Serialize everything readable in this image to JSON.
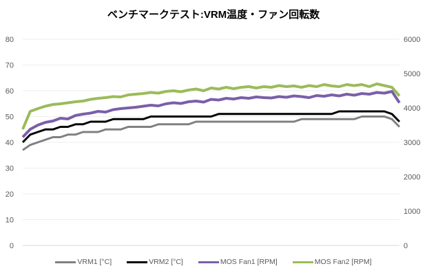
{
  "chart_data": {
    "type": "line",
    "title": "ベンチマークテスト:VRM温度・ファン回転数",
    "xlabel": "",
    "ylabel": "",
    "y2label": "",
    "x_range": [
      0,
      100
    ],
    "ylim": [
      0,
      80
    ],
    "yticks": [
      "0",
      "10",
      "20",
      "30",
      "40",
      "50",
      "60",
      "70",
      "80"
    ],
    "y2lim": [
      0,
      6000
    ],
    "y2ticks": [
      "0",
      "1000",
      "2000",
      "3000",
      "4000",
      "5000",
      "6000"
    ],
    "grid": true,
    "legend_position": "bottom",
    "x": [
      0,
      2,
      4,
      6,
      8,
      10,
      12,
      14,
      16,
      18,
      20,
      22,
      24,
      26,
      28,
      30,
      32,
      34,
      36,
      38,
      40,
      42,
      44,
      46,
      48,
      50,
      52,
      54,
      56,
      58,
      60,
      62,
      64,
      66,
      68,
      70,
      72,
      74,
      76,
      78,
      80,
      82,
      84,
      86,
      88,
      90,
      92,
      94,
      96,
      98,
      100
    ],
    "series": [
      {
        "name": "VRM1 [°C]",
        "axis": "left",
        "color": "#808080",
        "values": [
          37,
          39,
          40,
          41,
          42,
          42,
          43,
          43,
          44,
          44,
          44,
          45,
          45,
          45,
          46,
          46,
          46,
          46,
          47,
          47,
          47,
          47,
          47,
          48,
          48,
          48,
          48,
          48,
          48,
          48,
          48,
          48,
          48,
          48,
          48,
          48,
          48,
          49,
          49,
          49,
          49,
          49,
          49,
          49,
          49,
          50,
          50,
          50,
          50,
          49,
          46
        ]
      },
      {
        "name": "VRM2 [°C]",
        "axis": "left",
        "color": "#000000",
        "values": [
          40,
          43,
          44,
          45,
          45,
          46,
          46,
          47,
          47,
          48,
          48,
          48,
          49,
          49,
          49,
          49,
          49,
          50,
          50,
          50,
          50,
          50,
          50,
          50,
          50,
          50,
          51,
          51,
          51,
          51,
          51,
          51,
          51,
          51,
          51,
          51,
          51,
          51,
          51,
          51,
          51,
          51,
          52,
          52,
          52,
          52,
          52,
          52,
          52,
          51,
          48
        ]
      },
      {
        "name": "MOS Fan1 [RPM]",
        "axis": "right",
        "color": "#7a5fa8",
        "values": [
          3150,
          3380,
          3500,
          3580,
          3620,
          3700,
          3680,
          3780,
          3820,
          3850,
          3900,
          3880,
          3950,
          3980,
          4000,
          4020,
          4050,
          4080,
          4060,
          4120,
          4150,
          4130,
          4180,
          4200,
          4170,
          4250,
          4230,
          4280,
          4260,
          4300,
          4280,
          4320,
          4300,
          4290,
          4330,
          4310,
          4350,
          4330,
          4300,
          4360,
          4340,
          4380,
          4350,
          4400,
          4370,
          4420,
          4400,
          4450,
          4430,
          4480,
          4150
        ]
      },
      {
        "name": "MOS Fan2 [RPM]",
        "axis": "right",
        "color": "#9bbb59",
        "values": [
          3380,
          3900,
          3980,
          4050,
          4100,
          4120,
          4150,
          4180,
          4200,
          4250,
          4280,
          4300,
          4330,
          4320,
          4380,
          4400,
          4420,
          4450,
          4430,
          4480,
          4500,
          4470,
          4520,
          4550,
          4500,
          4580,
          4550,
          4600,
          4560,
          4600,
          4620,
          4580,
          4620,
          4600,
          4650,
          4620,
          4640,
          4600,
          4650,
          4620,
          4680,
          4640,
          4620,
          4680,
          4650,
          4680,
          4620,
          4700,
          4650,
          4600,
          4350
        ]
      }
    ]
  }
}
